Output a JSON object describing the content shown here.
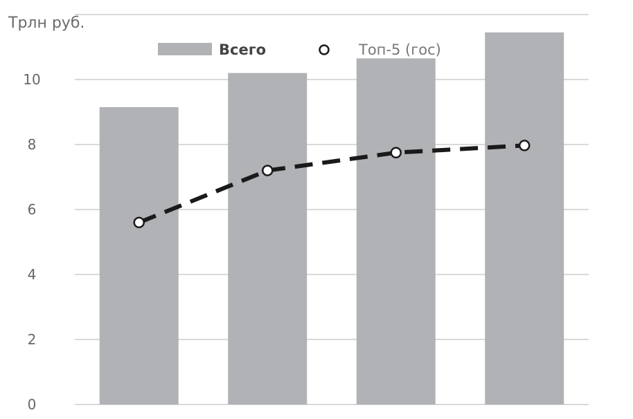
{
  "chart_data": {
    "type": "bar",
    "title": "",
    "unit_label": "Трлн  руб.",
    "xlabel": "",
    "ylabel": "",
    "categories": [
      "",
      "",
      "",
      ""
    ],
    "ylim": [
      0,
      12
    ],
    "yticks": [
      0,
      2,
      4,
      6,
      8,
      10
    ],
    "grid": true,
    "legend_position": "top",
    "series": [
      {
        "name": "Всего",
        "type": "bar",
        "color": "#b0b2b5",
        "values": [
          9.15,
          10.2,
          10.65,
          11.45
        ]
      },
      {
        "name": "Топ-5 (гос)",
        "type": "line",
        "line_style": "dashed",
        "marker": "open-circle",
        "color": "#1a1a1a",
        "values": [
          5.6,
          7.2,
          7.75,
          7.97
        ]
      }
    ]
  }
}
